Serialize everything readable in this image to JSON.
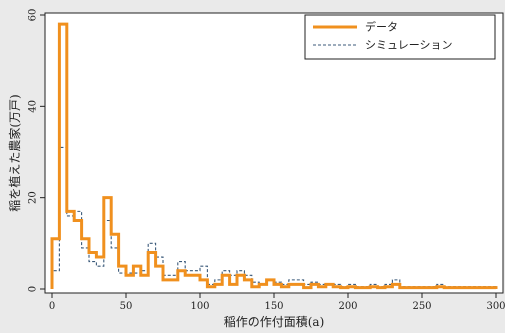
{
  "chart_data": {
    "type": "line",
    "title": "",
    "xlabel": "稲作の作付面積(a)",
    "ylabel": "稲を植えた農家(万戸)",
    "xlim": [
      0,
      300
    ],
    "ylim": [
      0,
      60
    ],
    "x_ticks": [
      0,
      50,
      100,
      150,
      200,
      250,
      300
    ],
    "y_ticks": [
      0,
      20,
      40,
      60
    ],
    "grid": false,
    "legend_position": "top-right",
    "bin_width": 5,
    "series": [
      {
        "name": "データ",
        "style": "solid",
        "color": "#f0901e",
        "bin_start": [
          0,
          5,
          10,
          15,
          20,
          25,
          30,
          35,
          40,
          45,
          50,
          55,
          60,
          65,
          70,
          75,
          80,
          85,
          90,
          95,
          100,
          105,
          110,
          115,
          120,
          125,
          130,
          135,
          140,
          145,
          150,
          155,
          160,
          165,
          170,
          175,
          180,
          185,
          190,
          195,
          200,
          205,
          210,
          215,
          220,
          225,
          230,
          235,
          240,
          245,
          250,
          255,
          260,
          265,
          270,
          275,
          280,
          285,
          290,
          295
        ],
        "values": [
          11,
          58,
          17,
          15,
          11,
          8,
          7,
          20,
          12,
          5,
          3,
          5,
          3,
          8,
          5,
          2,
          2,
          4,
          3,
          3,
          2,
          0.5,
          1,
          3,
          1,
          3,
          2,
          0.5,
          1,
          2,
          1,
          0.5,
          1,
          1,
          0.3,
          1,
          0.5,
          1,
          0.5,
          0.3,
          0.5,
          0.3,
          0.3,
          0.5,
          0.3,
          0.5,
          1,
          0.3,
          0.3,
          0.3,
          0.3,
          0.3,
          0.5,
          0.3,
          0.3,
          0.3,
          0.3,
          0.3,
          0.3,
          0.3
        ]
      },
      {
        "name": "シミュレーション",
        "style": "dashed",
        "color": "#3b5a7a",
        "bin_start": [
          0,
          5,
          10,
          15,
          20,
          25,
          30,
          35,
          40,
          45,
          50,
          55,
          60,
          65,
          70,
          75,
          80,
          85,
          90,
          95,
          100,
          105,
          110,
          115,
          120,
          125,
          130,
          135,
          140,
          145,
          150,
          155,
          160,
          165,
          170,
          175,
          180,
          185,
          190,
          195,
          200,
          205,
          210,
          215,
          220,
          225,
          230,
          235,
          240,
          245,
          250,
          255,
          260,
          265,
          270,
          275,
          280,
          285,
          290,
          295
        ],
        "values": [
          4,
          31,
          16,
          17,
          9,
          6,
          5,
          15,
          9,
          3.5,
          3.5,
          3.5,
          4,
          10,
          7,
          3,
          3,
          6,
          4,
          4,
          5,
          1,
          2,
          4,
          3,
          4,
          3,
          1.5,
          1,
          2,
          1.5,
          1,
          2,
          2,
          1,
          1.5,
          1,
          1,
          1,
          0.5,
          1,
          0.5,
          0.5,
          1,
          0.5,
          1,
          2,
          0.5,
          0.5,
          0.5,
          0.5,
          0.5,
          1,
          0.5,
          0.5,
          0.5,
          0.5,
          0.5,
          0.5,
          0.5
        ]
      }
    ]
  }
}
